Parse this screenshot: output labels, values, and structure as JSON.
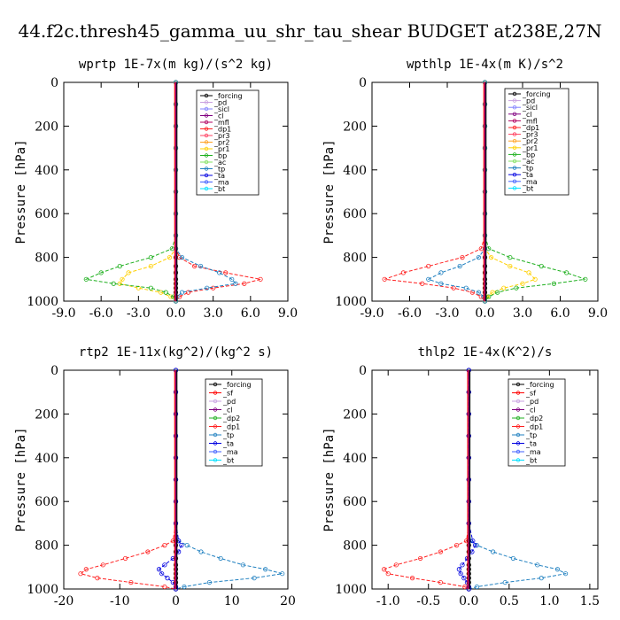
{
  "figure_title": "44.f2c.thresh45_gamma_uu_shr_tau_shear  BUDGET at238E,27N",
  "colors": {
    "_forcing": "#000000",
    "_pd": "#c8a0e0",
    "_sicl": "#8080ff",
    "_cl": "#800080",
    "_mfl": "#b00060",
    "_dp1": "#ff2020",
    "_pr3": "#ff4060",
    "_pr2": "#ffa020",
    "_pr1": "#ffd000",
    "_bp": "#20b020",
    "_ac": "#80e060",
    "_tp": "#2080c0",
    "_ta": "#0000e0",
    "_ma": "#4060ff",
    "_bt": "#00e0ff",
    "_sf": "#ff0000",
    "_dp2": "#20b020"
  },
  "chart_data": [
    {
      "type": "line",
      "title": "wprtp   1E-7x(m kg)/(s^2 kg)",
      "ylabel": "Pressure [hPa]",
      "xlim": [
        -9,
        9
      ],
      "ylim": [
        1000,
        0
      ],
      "xticks": [
        "-9.0",
        "-6.0",
        "-3.0",
        "0.0",
        "3.0",
        "6.0",
        "9.0"
      ],
      "yticks": [
        "0",
        "200",
        "400",
        "600",
        "800",
        "1000"
      ],
      "pressure": [
        0,
        100,
        200,
        300,
        400,
        500,
        600,
        700,
        760,
        800,
        840,
        870,
        900,
        920,
        940,
        960,
        980,
        1000
      ],
      "legend": [
        "_forcing",
        "_pd",
        "_sicl",
        "_cl",
        "_mfl",
        "_dp1",
        "_pr3",
        "_pr2",
        "_pr1",
        "_bp",
        "_ac",
        "_tp",
        "_ta",
        "_ma",
        "_bt"
      ],
      "series": [
        {
          "name": "_forcing",
          "values": [
            0,
            0,
            0,
            0,
            0,
            0,
            0,
            0,
            0,
            0,
            0,
            0,
            0,
            0,
            0,
            0,
            0,
            0
          ]
        },
        {
          "name": "_dp1",
          "values": [
            0,
            0,
            0,
            0,
            0,
            0,
            0,
            0,
            0,
            0.3,
            1.5,
            4.0,
            6.8,
            5.5,
            3.0,
            1.0,
            0.3,
            0
          ]
        },
        {
          "name": "_pr1",
          "values": [
            0,
            0,
            0,
            0,
            0,
            0,
            0,
            0,
            0,
            -0.5,
            -2.0,
            -3.8,
            -4.3,
            -4.5,
            -3.0,
            -1.2,
            -0.4,
            0
          ]
        },
        {
          "name": "_bp",
          "values": [
            0,
            0,
            0,
            0,
            0,
            0,
            0,
            0,
            -0.3,
            -2.0,
            -4.5,
            -6.0,
            -7.2,
            -5.0,
            -2.0,
            -0.8,
            -0.2,
            0
          ]
        },
        {
          "name": "_tp",
          "values": [
            0,
            0,
            0,
            0,
            0,
            0,
            0,
            0,
            0,
            0.5,
            2.0,
            3.5,
            4.5,
            4.8,
            2.5,
            0.5,
            0.1,
            0
          ]
        }
      ]
    },
    {
      "type": "line",
      "title": "wpthlp   1E-4x(m K)/s^2",
      "ylabel": "Pressure [hPa]",
      "xlim": [
        -9,
        9
      ],
      "ylim": [
        1000,
        0
      ],
      "xticks": [
        "-9.0",
        "-6.0",
        "-3.0",
        "0.0",
        "3.0",
        "6.0",
        "9.0"
      ],
      "yticks": [
        "0",
        "200",
        "400",
        "600",
        "800",
        "1000"
      ],
      "pressure": [
        0,
        100,
        200,
        300,
        400,
        500,
        600,
        700,
        760,
        800,
        840,
        870,
        900,
        920,
        940,
        960,
        980,
        1000
      ],
      "legend": [
        "_forcing",
        "_pd",
        "_sicl",
        "_cl",
        "_mfl",
        "_dp1",
        "_pr3",
        "_pr2",
        "_pr1",
        "_bp",
        "_ac",
        "_tp",
        "_ta",
        "_ma",
        "_bt"
      ],
      "series": [
        {
          "name": "_forcing",
          "values": [
            0,
            0,
            0,
            0,
            0,
            0,
            0,
            0,
            0,
            0,
            0,
            0,
            0,
            0,
            0,
            0,
            0,
            0
          ]
        },
        {
          "name": "_dp1",
          "values": [
            0,
            0,
            0,
            0,
            0,
            0,
            0,
            0,
            -0.3,
            -1.8,
            -4.5,
            -6.5,
            -8.0,
            -5.0,
            -2.5,
            -1.0,
            -0.3,
            0
          ]
        },
        {
          "name": "_pr1",
          "values": [
            0,
            0,
            0,
            0,
            0,
            0,
            0,
            0,
            0,
            0.5,
            2.0,
            3.5,
            4.0,
            3.0,
            1.5,
            0.6,
            0.2,
            0
          ]
        },
        {
          "name": "_bp",
          "values": [
            0,
            0,
            0,
            0,
            0,
            0,
            0,
            0,
            0.3,
            2.0,
            4.5,
            6.5,
            8.0,
            5.5,
            2.5,
            1.0,
            0.3,
            0
          ]
        },
        {
          "name": "_tp",
          "values": [
            0,
            0,
            0,
            0,
            0,
            0,
            0,
            0,
            0,
            -0.5,
            -2.0,
            -3.5,
            -4.5,
            -3.5,
            -1.5,
            -0.5,
            -0.1,
            0
          ]
        }
      ]
    },
    {
      "type": "line",
      "title": "rtp2   1E-11x(kg^2)/(kg^2 s)",
      "ylabel": "Pressure [hPa]",
      "xlim": [
        -20,
        20
      ],
      "ylim": [
        1000,
        0
      ],
      "xticks": [
        "-20",
        "-10",
        "0",
        "10",
        "20"
      ],
      "yticks": [
        "0",
        "200",
        "400",
        "600",
        "800",
        "1000"
      ],
      "pressure": [
        0,
        100,
        200,
        300,
        400,
        500,
        600,
        700,
        780,
        800,
        830,
        860,
        890,
        910,
        930,
        950,
        970,
        990,
        1000
      ],
      "legend": [
        "_forcing",
        "_sf",
        "_pd",
        "_cl",
        "_dp2",
        "_dp1",
        "_tp",
        "_ta",
        "_ma",
        "_bt"
      ],
      "series": [
        {
          "name": "_forcing",
          "values": [
            0,
            0,
            0,
            0,
            0,
            0,
            0,
            0,
            0,
            0,
            0,
            0,
            0,
            0,
            0,
            0,
            0,
            0,
            0
          ]
        },
        {
          "name": "_dp1",
          "values": [
            0,
            0,
            0,
            0,
            0,
            0,
            0,
            0,
            -0.5,
            -2.0,
            -5.0,
            -9.0,
            -13.0,
            -16.0,
            -17.0,
            -14.0,
            -8.0,
            -2.0,
            0
          ]
        },
        {
          "name": "_tp",
          "values": [
            0,
            0,
            0,
            0,
            0,
            0,
            0,
            0,
            0.5,
            2.0,
            4.5,
            8.0,
            12.0,
            16.0,
            19.0,
            14.0,
            6.0,
            1.5,
            0
          ]
        },
        {
          "name": "_ta",
          "values": [
            0,
            0,
            0,
            0,
            0,
            0,
            0,
            0,
            0.5,
            1.0,
            0.5,
            -0.5,
            -2.0,
            -3.0,
            -2.5,
            -1.5,
            -0.5,
            0,
            0
          ]
        }
      ]
    },
    {
      "type": "line",
      "title": "thlp2   1E-4x(K^2)/s",
      "ylabel": "Pressure [hPa]",
      "xlim": [
        -1.2,
        1.6
      ],
      "ylim": [
        1000,
        0
      ],
      "xticks": [
        "-1.0",
        "-0.5",
        "0.0",
        "0.5",
        "1.0",
        "1.5"
      ],
      "xtick_values": [
        -1.0,
        -0.5,
        0.0,
        0.5,
        1.0,
        1.5
      ],
      "yticks": [
        "0",
        "200",
        "400",
        "600",
        "800",
        "1000"
      ],
      "pressure": [
        0,
        100,
        200,
        300,
        400,
        500,
        600,
        700,
        780,
        800,
        830,
        860,
        890,
        910,
        930,
        950,
        970,
        990,
        1000
      ],
      "legend": [
        "_forcing",
        "_sf",
        "_pd",
        "_cl",
        "_dp2",
        "_dp1",
        "_tp",
        "_ta",
        "_ma",
        "_bt"
      ],
      "series": [
        {
          "name": "_forcing",
          "values": [
            0,
            0,
            0,
            0,
            0,
            0,
            0,
            0,
            0,
            0,
            0,
            0,
            0,
            0,
            0,
            0,
            0,
            0,
            0
          ]
        },
        {
          "name": "_dp1",
          "values": [
            0,
            0,
            0,
            0,
            0,
            0,
            0,
            0,
            -0.03,
            -0.15,
            -0.35,
            -0.6,
            -0.9,
            -1.05,
            -1.0,
            -0.7,
            -0.35,
            -0.05,
            0
          ]
        },
        {
          "name": "_tp",
          "values": [
            0,
            0,
            0,
            0,
            0,
            0,
            0,
            0,
            0.02,
            0.1,
            0.3,
            0.55,
            0.85,
            1.1,
            1.2,
            0.9,
            0.45,
            0.1,
            0
          ]
        },
        {
          "name": "_ta",
          "values": [
            0,
            0,
            0,
            0,
            0,
            0,
            0,
            0,
            0.05,
            0.08,
            0.04,
            -0.02,
            -0.08,
            -0.12,
            -0.1,
            -0.06,
            -0.02,
            0,
            0
          ]
        }
      ]
    }
  ]
}
